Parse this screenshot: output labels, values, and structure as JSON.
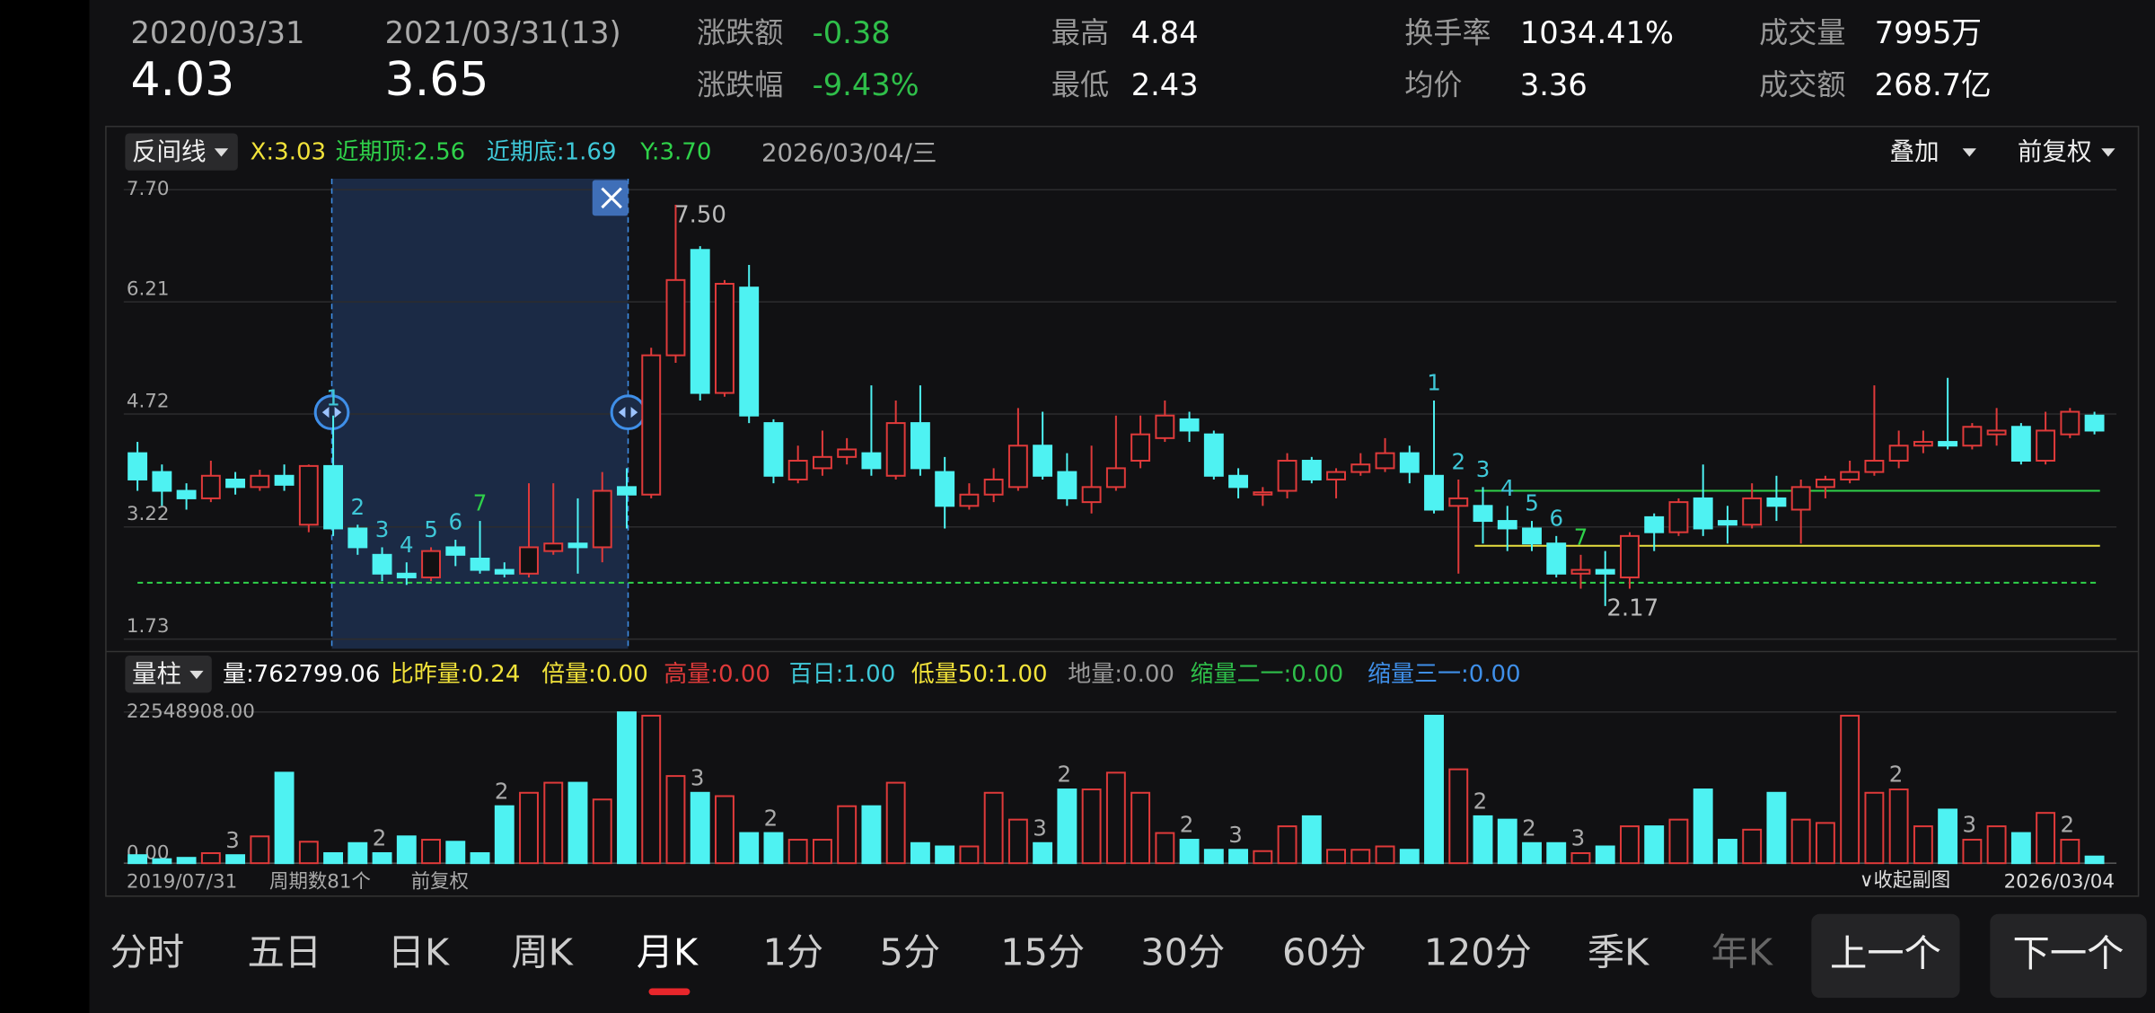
{
  "header": {
    "start": {
      "date": "2020/03/31",
      "price": "4.03"
    },
    "end": {
      "date": "2021/03/31(13)",
      "price": "3.65"
    },
    "stats": [
      {
        "label": "涨跌额",
        "value": "-0.38",
        "color": "#2fbf4a"
      },
      {
        "label": "涨跌幅",
        "value": "-9.43%",
        "color": "#2fbf4a"
      },
      {
        "label": "最高",
        "value": "4.84",
        "color": "#ffffff"
      },
      {
        "label": "最低",
        "value": "2.43",
        "color": "#ffffff"
      },
      {
        "label": "换手率",
        "value": "1034.41%",
        "color": "#ffffff"
      },
      {
        "label": "均价",
        "value": "3.36",
        "color": "#ffffff"
      },
      {
        "label": "成交量",
        "value": "7995万",
        "color": "#ffffff"
      },
      {
        "label": "成交额",
        "value": "268.7亿",
        "color": "#ffffff"
      }
    ]
  },
  "indicator": {
    "selector": "反间线",
    "items": [
      {
        "text": "X:3.03",
        "color": "#f2e33a"
      },
      {
        "text": "近期顶:2.56",
        "color": "#2fd24a"
      },
      {
        "text": "近期底:1.69",
        "color": "#3fc8d8"
      },
      {
        "text": "Y:3.70",
        "color": "#2fd24a"
      }
    ],
    "date": "2026/03/04/三",
    "overlay": "叠加",
    "adjust": "前复权"
  },
  "chart_data": [
    {
      "type": "candlestick",
      "ylim": [
        1.73,
        7.7
      ],
      "yticks": [
        {
          "value": 7.7,
          "label": "7.70"
        },
        6.21,
        4.72,
        3.22,
        1.73
      ],
      "grid": true,
      "up_color": "#e03a3a",
      "down_color": "#4ef2f2",
      "candles": [
        [
          4.2,
          4.35,
          3.7,
          3.85
        ],
        [
          3.95,
          4.05,
          3.5,
          3.7
        ],
        [
          3.7,
          3.8,
          3.45,
          3.6
        ],
        [
          3.6,
          4.1,
          3.55,
          3.9
        ],
        [
          3.85,
          3.95,
          3.65,
          3.75
        ],
        [
          3.75,
          3.98,
          3.7,
          3.9
        ],
        [
          3.9,
          4.05,
          3.7,
          3.78
        ],
        [
          3.25,
          4.05,
          3.15,
          4.03
        ],
        [
          4.03,
          4.7,
          3.1,
          3.2
        ],
        [
          3.2,
          3.25,
          2.85,
          2.95
        ],
        [
          2.85,
          2.95,
          2.5,
          2.6
        ],
        [
          2.6,
          2.75,
          2.45,
          2.55
        ],
        [
          2.55,
          2.95,
          2.5,
          2.9
        ],
        [
          2.95,
          3.05,
          2.7,
          2.85
        ],
        [
          2.8,
          3.3,
          2.6,
          2.65
        ],
        [
          2.65,
          2.75,
          2.55,
          2.6
        ],
        [
          2.6,
          3.8,
          2.55,
          2.95
        ],
        [
          2.9,
          3.8,
          2.85,
          3.0
        ],
        [
          3.0,
          3.6,
          2.6,
          2.95
        ],
        [
          2.95,
          3.95,
          2.75,
          3.7
        ],
        [
          3.75,
          4.0,
          3.2,
          3.65
        ],
        [
          3.65,
          5.6,
          3.6,
          5.5
        ],
        [
          5.5,
          7.5,
          5.4,
          6.5
        ],
        [
          6.9,
          6.95,
          4.9,
          5.0
        ],
        [
          5.0,
          6.5,
          4.95,
          6.45
        ],
        [
          6.4,
          6.7,
          4.6,
          4.7
        ],
        [
          4.6,
          4.65,
          3.8,
          3.9
        ],
        [
          3.85,
          4.3,
          3.8,
          4.1
        ],
        [
          4.0,
          4.5,
          3.9,
          4.15
        ],
        [
          4.15,
          4.4,
          4.05,
          4.25
        ],
        [
          4.2,
          5.1,
          3.9,
          4.0
        ],
        [
          3.9,
          4.9,
          3.85,
          4.6
        ],
        [
          4.6,
          5.1,
          3.9,
          4.0
        ],
        [
          3.95,
          4.15,
          3.2,
          3.5
        ],
        [
          3.5,
          3.8,
          3.45,
          3.65
        ],
        [
          3.65,
          4.0,
          3.55,
          3.85
        ],
        [
          3.75,
          4.8,
          3.7,
          4.3
        ],
        [
          4.3,
          4.75,
          3.85,
          3.9
        ],
        [
          3.95,
          4.2,
          3.5,
          3.6
        ],
        [
          3.55,
          4.3,
          3.4,
          3.75
        ],
        [
          3.75,
          4.7,
          3.7,
          4.0
        ],
        [
          4.1,
          4.7,
          4.0,
          4.45
        ],
        [
          4.4,
          4.9,
          4.35,
          4.7
        ],
        [
          4.65,
          4.75,
          4.35,
          4.5
        ],
        [
          4.45,
          4.5,
          3.85,
          3.9
        ],
        [
          3.9,
          4.0,
          3.6,
          3.75
        ],
        [
          3.65,
          3.75,
          3.5,
          3.68
        ],
        [
          3.7,
          4.2,
          3.6,
          4.1
        ],
        [
          4.1,
          4.15,
          3.8,
          3.85
        ],
        [
          3.85,
          4.0,
          3.6,
          3.95
        ],
        [
          3.95,
          4.2,
          3.9,
          4.05
        ],
        [
          4.0,
          4.4,
          3.95,
          4.2
        ],
        [
          4.2,
          4.3,
          3.8,
          3.95
        ],
        [
          3.9,
          4.9,
          3.4,
          3.45
        ],
        [
          3.5,
          3.85,
          2.6,
          3.6
        ],
        [
          3.5,
          3.75,
          3.0,
          3.3
        ],
        [
          3.3,
          3.5,
          2.9,
          3.2
        ],
        [
          3.2,
          3.3,
          2.9,
          3.0
        ],
        [
          3.0,
          3.1,
          2.55,
          2.6
        ],
        [
          2.6,
          2.85,
          2.4,
          2.65
        ],
        [
          2.65,
          2.9,
          2.17,
          2.6
        ],
        [
          2.55,
          3.15,
          2.4,
          3.1
        ],
        [
          3.35,
          3.4,
          2.9,
          3.15
        ],
        [
          3.15,
          3.6,
          3.1,
          3.55
        ],
        [
          3.6,
          4.05,
          3.1,
          3.2
        ],
        [
          3.3,
          3.5,
          3.0,
          3.25
        ],
        [
          3.25,
          3.8,
          3.2,
          3.6
        ],
        [
          3.6,
          3.9,
          3.3,
          3.5
        ],
        [
          3.45,
          3.85,
          3.0,
          3.75
        ],
        [
          3.75,
          3.9,
          3.6,
          3.85
        ],
        [
          3.85,
          4.1,
          3.8,
          3.95
        ],
        [
          3.95,
          5.1,
          3.9,
          4.1
        ],
        [
          4.1,
          4.5,
          4.0,
          4.3
        ],
        [
          4.3,
          4.5,
          4.2,
          4.35
        ],
        [
          4.35,
          5.2,
          4.25,
          4.3
        ],
        [
          4.3,
          4.6,
          4.25,
          4.55
        ],
        [
          4.45,
          4.8,
          4.3,
          4.5
        ],
        [
          4.55,
          4.6,
          4.05,
          4.1
        ],
        [
          4.1,
          4.75,
          4.05,
          4.5
        ],
        [
          4.45,
          4.8,
          4.4,
          4.75
        ],
        [
          4.7,
          4.75,
          4.45,
          4.5
        ]
      ],
      "selection": {
        "from": 8,
        "to": 20
      },
      "lines": [
        {
          "value": 3.7,
          "color": "#2fd24a",
          "from": 55
        },
        {
          "value": 2.97,
          "color": "#e8e040",
          "from": 55
        },
        {
          "value": 2.48,
          "color": "#2fd24a",
          "dashed": true
        }
      ],
      "sequence_labels": [
        {
          "label": "1",
          "candle": 8,
          "color": "#3fc8d8"
        },
        {
          "label": "2",
          "candle": 9,
          "color": "#3fc8d8"
        },
        {
          "label": "3",
          "candle": 10,
          "color": "#3fc8d8"
        },
        {
          "label": "4",
          "candle": 11,
          "color": "#3fc8d8"
        },
        {
          "label": "5",
          "candle": 12,
          "color": "#3fc8d8"
        },
        {
          "label": "6",
          "candle": 13,
          "color": "#3fc8d8"
        },
        {
          "label": "7",
          "candle": 14,
          "color": "#2fd24a"
        },
        {
          "label": "1",
          "candle": 53,
          "color": "#3fc8d8"
        },
        {
          "label": "2",
          "candle": 54,
          "color": "#3fc8d8"
        },
        {
          "label": "3",
          "candle": 55,
          "color": "#3fc8d8"
        },
        {
          "label": "4",
          "candle": 56,
          "color": "#3fc8d8"
        },
        {
          "label": "5",
          "candle": 57,
          "color": "#3fc8d8"
        },
        {
          "label": "6",
          "candle": 58,
          "color": "#3fc8d8"
        },
        {
          "label": "7",
          "candle": 59,
          "color": "#2fd24a"
        }
      ],
      "annotations": [
        {
          "text": "7.50",
          "candle": 22
        },
        {
          "text": "2.17",
          "candle": 60
        }
      ]
    },
    {
      "type": "volume",
      "ylim": [
        0,
        22548908
      ],
      "yticks": [
        {
          "value": 22548908,
          "label": "22548908.00"
        },
        {
          "value": 0,
          "label": "0.00"
        }
      ],
      "values": [
        1200000,
        600000,
        800000,
        1500000,
        1200000,
        4000000,
        13500000,
        3200000,
        1500000,
        3000000,
        1500000,
        4000000,
        3500000,
        3200000,
        1500000,
        8500000,
        10500000,
        12000000,
        12000000,
        9500000,
        22500000,
        22000000,
        13000000,
        10500000,
        10000000,
        4500000,
        4500000,
        3500000,
        3500000,
        8500000,
        8500000,
        12000000,
        3000000,
        2500000,
        2500000,
        10500000,
        6500000,
        3000000,
        11000000,
        11000000,
        13500000,
        10500000,
        4500000,
        3500000,
        2000000,
        2000000,
        1800000,
        5500000,
        7000000,
        2000000,
        2000000,
        2500000,
        2000000,
        22000000,
        14000000,
        7000000,
        6500000,
        3000000,
        3000000,
        1500000,
        2500000,
        5500000,
        5500000,
        6500000,
        11000000,
        3500000,
        5000000,
        10500000,
        6500000,
        6000000,
        22000000,
        10500000,
        11000000,
        5500000,
        8000000,
        3500000,
        5500000,
        4500000,
        7500000,
        3500000,
        1000000
      ],
      "bar_labels": [
        {
          "label": "3",
          "bar": 4
        },
        {
          "label": "2",
          "bar": 10
        },
        {
          "label": "2",
          "bar": 15
        },
        {
          "label": "3",
          "bar": 23
        },
        {
          "label": "2",
          "bar": 26
        },
        {
          "label": "3",
          "bar": 37
        },
        {
          "label": "2",
          "bar": 38
        },
        {
          "label": "2",
          "bar": 43
        },
        {
          "label": "3",
          "bar": 45
        },
        {
          "label": "2",
          "bar": 55
        },
        {
          "label": "2",
          "bar": 57
        },
        {
          "label": "3",
          "bar": 59
        },
        {
          "label": "2",
          "bar": 72
        },
        {
          "label": "3",
          "bar": 75
        },
        {
          "label": "2",
          "bar": 79
        }
      ]
    }
  ],
  "volume_indicator": {
    "selector": "量柱",
    "items": [
      {
        "text": "量:762799.06",
        "color": "#ffffff"
      },
      {
        "text": "比昨量:0.24",
        "color": "#f2e33a"
      },
      {
        "text": "倍量:0.00",
        "color": "#f2e33a"
      },
      {
        "text": "高量:0.00",
        "color": "#e03a3a"
      },
      {
        "text": "百日:1.00",
        "color": "#3fc8d8"
      },
      {
        "text": "低量50:1.00",
        "color": "#f2e33a"
      },
      {
        "text": "地量:0.00",
        "color": "#999999"
      },
      {
        "text": "缩量二一:0.00",
        "color": "#2fbf4a"
      },
      {
        "text": "缩量三一:0.00",
        "color": "#3f8fe8"
      }
    ]
  },
  "footer": {
    "start": "2019/07/31",
    "periods": "周期数81个",
    "adjust": "前复权",
    "collapse": "∨收起副图",
    "end": "2026/03/04"
  },
  "tabs": {
    "items": [
      "分时",
      "五日",
      "日K",
      "周K",
      "月K",
      "1分",
      "5分",
      "15分",
      "30分",
      "60分",
      "120分",
      "季K",
      "年K"
    ],
    "active": 4,
    "prev": "上一个",
    "next": "下一个"
  }
}
